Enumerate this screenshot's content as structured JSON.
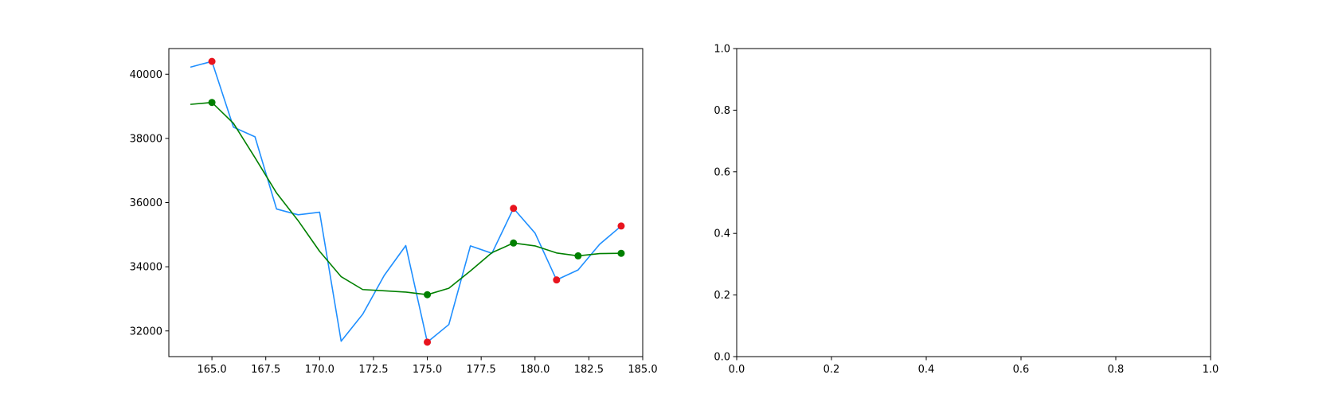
{
  "chart_data": [
    {
      "type": "line",
      "title": "",
      "xlabel": "",
      "ylabel": "",
      "xlim": [
        163.0,
        185.0
      ],
      "ylim": [
        31200,
        40800
      ],
      "xticks": [
        165.0,
        167.5,
        170.0,
        172.5,
        175.0,
        177.5,
        180.0,
        182.5,
        185.0
      ],
      "xtick_labels": [
        "165.0",
        "167.5",
        "170.0",
        "172.5",
        "175.0",
        "177.5",
        "180.0",
        "182.5",
        "185.0"
      ],
      "yticks": [
        32000,
        34000,
        36000,
        38000,
        40000
      ],
      "ytick_labels": [
        "32000",
        "34000",
        "36000",
        "38000",
        "40000"
      ],
      "grid": false,
      "series": [
        {
          "color": "#1f8fff",
          "x": [
            164,
            165,
            166,
            167,
            168,
            169,
            170,
            171,
            172,
            173,
            174,
            175,
            176,
            177,
            178,
            179,
            180,
            181,
            182,
            183,
            184
          ],
          "y": [
            40220,
            40400,
            38350,
            38050,
            35800,
            35620,
            35700,
            31680,
            32520,
            33730,
            34660,
            31650,
            32200,
            34650,
            34420,
            35820,
            35050,
            33590,
            33900,
            34700,
            35270
          ]
        },
        {
          "color": "#008000",
          "x": [
            164,
            165,
            166,
            167,
            168,
            169,
            170,
            171,
            172,
            173,
            174,
            175,
            176,
            177,
            178,
            179,
            180,
            181,
            182,
            183,
            184
          ],
          "y": [
            39060,
            39120,
            38470,
            37400,
            36300,
            35440,
            34480,
            33690,
            33290,
            33250,
            33210,
            33130,
            33330,
            33870,
            34440,
            34740,
            34650,
            34430,
            34340,
            34410,
            34420
          ]
        }
      ],
      "markers": [
        {
          "color": "#e8141e",
          "x": [
            165,
            175,
            179,
            181,
            184
          ],
          "y": [
            40400,
            31650,
            35820,
            33590,
            35270
          ]
        },
        {
          "color": "#008000",
          "x": [
            165,
            175,
            179,
            182,
            184
          ],
          "y": [
            39120,
            33130,
            34740,
            34340,
            34420
          ]
        }
      ]
    },
    {
      "type": "line",
      "title": "",
      "xlabel": "",
      "ylabel": "",
      "xlim": [
        0.0,
        1.0
      ],
      "ylim": [
        0.0,
        1.0
      ],
      "xticks": [
        0.0,
        0.2,
        0.4,
        0.6,
        0.8,
        1.0
      ],
      "xtick_labels": [
        "0.0",
        "0.2",
        "0.4",
        "0.6",
        "0.8",
        "1.0"
      ],
      "yticks": [
        0.0,
        0.2,
        0.4,
        0.6,
        0.8,
        1.0
      ],
      "ytick_labels": [
        "0.0",
        "0.2",
        "0.4",
        "0.6",
        "0.8",
        "1.0"
      ],
      "grid": false,
      "series": [],
      "markers": []
    }
  ]
}
